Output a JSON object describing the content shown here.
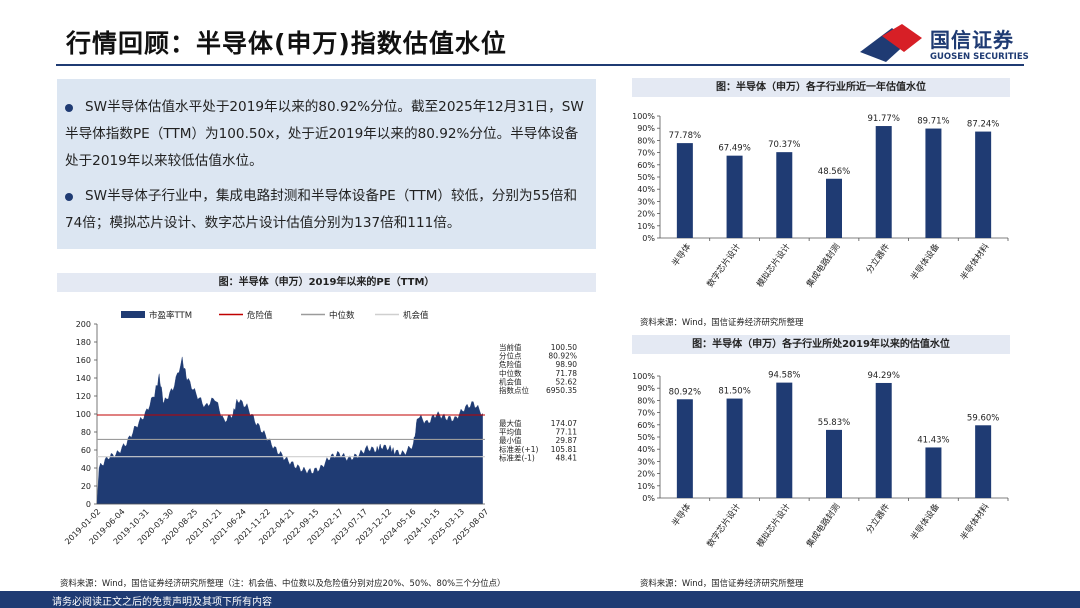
{
  "page_title": "行情回顾：半导体(申万)指数估值水位",
  "logo": {
    "cn": "国信证券",
    "en": "GUOSEN SECURITIES"
  },
  "summary": {
    "bullet1": "SW半导体估值水平处于2019年以来的80.92%分位。截至2025年12月31日，SW半导体指数PE（TTM）为100.50x，处于近2019年以来的80.92%分位。半导体设备处于2019年以来较低估值水位。",
    "bullet2": "SW半导体子行业中，集成电路封测和半导体设备PE（TTM）较低，分别为55倍和74倍；模拟芯片设计、数字芯片设计估值分别为137倍和111倍。"
  },
  "left_chart": {
    "title": "图：半导体（申万）2019年以来的PE（TTM）",
    "source": "资料来源：Wind，国信证券经济研究所整理（注：机会值、中位数以及危险值分别对应20%、50%、80%三个分位点）"
  },
  "right_top_chart": {
    "title": "图：半导体（申万）各子行业所近一年估值水位",
    "source": "资料来源：Wind，国信证券经济研究所整理"
  },
  "right_bottom_chart": {
    "title": "图：半导体（申万）各子行业所处2019年以来的估值水位",
    "source": "资料来源：Wind，国信证券经济研究所整理"
  },
  "footer_text": "请务必阅读正文之后的免责声明及其项下所有内容",
  "colors": {
    "navy": "#1f3b73",
    "danger": "#c00000",
    "median": "#9b9b9b",
    "chance": "#cfcfcf",
    "panel": "#dce6f2"
  },
  "chart_data": [
    {
      "type": "area",
      "ylim": [
        0,
        200
      ],
      "yticks": [
        0,
        20,
        40,
        60,
        80,
        100,
        120,
        140,
        160,
        180,
        200
      ],
      "legend": [
        "市盈率TTM",
        "危险值",
        "中位数",
        "机会值"
      ],
      "legend_position": "top",
      "x_tick_labels": [
        "2019-01-02",
        "2019-06-04",
        "2019-10-31",
        "2020-03-30",
        "2020-08-25",
        "2021-01-21",
        "2021-06-24",
        "2021-11-22",
        "2022-04-21",
        "2022-09-15",
        "2023-02-17",
        "2023-07-17",
        "2023-12-12",
        "2024-05-16",
        "2024-10-15",
        "2025-03-13",
        "2025-08-07"
      ],
      "reference_lines": {
        "危险值": 98.9,
        "中位数": 71.78,
        "机会值": 52.62
      },
      "series": [
        {
          "name": "市盈率TTM",
          "x": [
            "2019-01",
            "2019-03",
            "2019-05",
            "2019-07",
            "2019-09",
            "2019-11",
            "2020-01",
            "2020-02",
            "2020-03",
            "2020-05",
            "2020-07",
            "2020-08",
            "2020-10",
            "2020-12",
            "2021-02",
            "2021-04",
            "2021-06",
            "2021-07",
            "2021-09",
            "2021-11",
            "2022-01",
            "2022-03",
            "2022-05",
            "2022-07",
            "2022-09",
            "2022-11",
            "2023-01",
            "2023-03",
            "2023-05",
            "2023-07",
            "2023-09",
            "2023-11",
            "2024-01",
            "2024-02",
            "2024-04",
            "2024-05",
            "2024-07",
            "2024-09",
            "2024-10",
            "2024-12",
            "2025-02",
            "2025-04",
            "2025-06",
            "2025-08",
            "2025-10",
            "2025-12"
          ],
          "values": [
            40,
            52,
            56,
            68,
            86,
            100,
            122,
            142,
            112,
            128,
            160,
            140,
            122,
            108,
            118,
            92,
            100,
            116,
            108,
            90,
            76,
            62,
            52,
            44,
            38,
            36,
            40,
            52,
            56,
            50,
            54,
            62,
            60,
            64,
            62,
            58,
            56,
            66,
            98,
            90,
            100,
            96,
            94,
            106,
            112,
            100.5
          ]
        }
      ],
      "stats": [
        {
          "label": "当前值",
          "value": "100.50"
        },
        {
          "label": "分位点",
          "value": "80.92%"
        },
        {
          "label": "危险值",
          "value": "98.90"
        },
        {
          "label": "中位数",
          "value": "71.78"
        },
        {
          "label": "机会值",
          "value": "52.62"
        },
        {
          "label": "指数点位",
          "value": "6950.35"
        },
        {
          "label": "最大值",
          "value": "174.07"
        },
        {
          "label": "平均值",
          "value": "77.11"
        },
        {
          "label": "最小值",
          "value": "29.87"
        },
        {
          "label": "标准差(+1)",
          "value": "105.81"
        },
        {
          "label": "标准差(-1)",
          "value": "48.41"
        }
      ]
    },
    {
      "type": "bar",
      "categories": [
        "半导体",
        "数字芯片设计",
        "模拟芯片设计",
        "集成电路封测",
        "分立器件",
        "半导体设备",
        "半导体材料"
      ],
      "values": [
        77.78,
        67.49,
        70.37,
        48.56,
        91.77,
        89.71,
        87.24
      ],
      "value_labels": [
        "77.78%",
        "67.49%",
        "70.37%",
        "48.56%",
        "91.77%",
        "89.71%",
        "87.24%"
      ],
      "ylim": [
        0,
        100
      ],
      "yticks": [
        "0%",
        "10%",
        "20%",
        "30%",
        "40%",
        "50%",
        "60%",
        "70%",
        "80%",
        "90%",
        "100%"
      ]
    },
    {
      "type": "bar",
      "categories": [
        "半导体",
        "数字芯片设计",
        "模拟芯片设计",
        "集成电路封测",
        "分立器件",
        "半导体设备",
        "半导体材料"
      ],
      "values": [
        80.92,
        81.5,
        94.58,
        55.83,
        94.29,
        41.43,
        59.6
      ],
      "value_labels": [
        "80.92%",
        "81.50%",
        "94.58%",
        "55.83%",
        "94.29%",
        "41.43%",
        "59.60%"
      ],
      "ylim": [
        0,
        100
      ],
      "yticks": [
        "0%",
        "10%",
        "20%",
        "30%",
        "40%",
        "50%",
        "60%",
        "70%",
        "80%",
        "90%",
        "100%"
      ]
    }
  ]
}
